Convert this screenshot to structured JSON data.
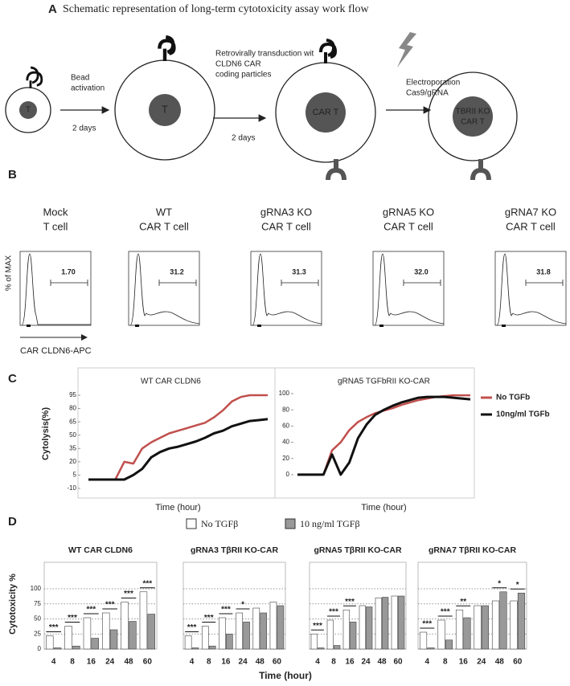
{
  "panel_a": {
    "letter": "A",
    "title": "Schematic representation of long-term cytotoxicity assay work flow",
    "cell_labels": [
      "T",
      "T",
      "CAR T"
    ],
    "ko_cell_label": [
      "TBRII KO",
      "CAR T"
    ],
    "steps": [
      {
        "lines": [
          "Bead",
          "activation"
        ],
        "duration": "2 days"
      },
      {
        "lines": [
          "Retrovirally transduction wit",
          "CLDN6 CAR",
          "coding particles"
        ],
        "duration": "2 days"
      },
      {
        "lines": [
          "Electroporation",
          "Cas9/gRNA"
        ]
      }
    ]
  },
  "panel_b": {
    "letter": "B",
    "y_label": "% of MAX",
    "x_label": "CAR CLDN6-APC",
    "samples": [
      {
        "lines": [
          "Mock",
          "T cell"
        ],
        "gate": "1.70"
      },
      {
        "lines": [
          "WT",
          "CAR T cell"
        ],
        "gate": "31.2"
      },
      {
        "lines": [
          "gRNA3 KO",
          "CAR T cell"
        ],
        "gate": "31.3"
      },
      {
        "lines": [
          "gRNA5 KO",
          "CAR T cell"
        ],
        "gate": "32.0"
      },
      {
        "lines": [
          "gRNA7 KO",
          "CAR T cell"
        ],
        "gate": "31.8"
      }
    ]
  },
  "panel_c": {
    "letter": "C"
  },
  "panel_d": {
    "letter": "D"
  },
  "chart_data": [
    {
      "type": "line",
      "title": "WT CAR CLDN6",
      "ylabel": "Cytolysis(%)",
      "xlabel": "Time (hour)",
      "ylim": [
        -10,
        100
      ],
      "yticks": [
        95,
        80,
        65,
        50,
        35,
        20,
        5,
        -10
      ],
      "series": [
        {
          "name": "No TGFb",
          "color": "#c0504d",
          "values": [
            0,
            0,
            0,
            0,
            20,
            18,
            35,
            42,
            47,
            52,
            55,
            58,
            61,
            64,
            70,
            78,
            88,
            93,
            95,
            95,
            95
          ]
        },
        {
          "name": "10ng/ml TGFb",
          "color": "#111111",
          "values": [
            0,
            0,
            0,
            0,
            0,
            5,
            12,
            25,
            31,
            35,
            37,
            40,
            43,
            47,
            52,
            55,
            60,
            63,
            66,
            67,
            68
          ]
        }
      ]
    },
    {
      "type": "line",
      "title": "gRNA5 TGFbRII KO-CAR",
      "xlabel": "Time (hour)",
      "ylim": [
        -10,
        105
      ],
      "yticks": [
        100,
        80,
        60,
        40,
        20,
        0
      ],
      "series": [
        {
          "color": "#c0504d",
          "values": [
            0,
            0,
            0,
            0,
            30,
            40,
            55,
            65,
            71,
            76,
            79,
            82,
            86,
            89,
            92,
            94,
            96,
            97,
            98,
            98,
            98
          ]
        },
        {
          "color": "#111111",
          "values": [
            0,
            0,
            0,
            0,
            25,
            0,
            15,
            45,
            62,
            74,
            80,
            85,
            89,
            92,
            95,
            96,
            96,
            96,
            95,
            94,
            93
          ]
        }
      ]
    },
    {
      "type": "bar",
      "ylabel": "Cytotoxicity %",
      "xlabel": "Time (hour)",
      "categories": [
        "4",
        "8",
        "16",
        "24",
        "48",
        "60"
      ],
      "ylim": [
        0,
        140
      ],
      "yticks": [
        0,
        25,
        50,
        75,
        100
      ],
      "series": [
        {
          "name": "No TGFβ",
          "color": "#ffffff"
        },
        {
          "name": "10 ng/ml TGFβ",
          "color": "#999999"
        }
      ],
      "panels": [
        {
          "title": "WT CAR CLDN6",
          "values": [
            [
              22,
              38,
              52,
              60,
              78,
              95
            ],
            [
              2,
              5,
              18,
              32,
              46,
              58
            ]
          ],
          "significance": [
            "***",
            "***",
            "***",
            "***",
            "***",
            "***"
          ]
        },
        {
          "title": "gRNA3 TβRII KO-CAR",
          "values": [
            [
              22,
              38,
              52,
              60,
              68,
              78
            ],
            [
              2,
              5,
              25,
              45,
              60,
              72
            ]
          ],
          "significance": [
            "***",
            "***",
            "***",
            "*",
            null,
            null
          ]
        },
        {
          "title": "gRNA5 TβRII KO-CAR",
          "values": [
            [
              25,
              48,
              65,
              72,
              85,
              88
            ],
            [
              2,
              6,
              45,
              70,
              86,
              88
            ]
          ],
          "significance": [
            "***",
            "***",
            "***",
            null,
            null,
            null
          ]
        },
        {
          "title": "gRNA7 TβRII KO-CAR",
          "values": [
            [
              28,
              48,
              65,
              72,
              80,
              80
            ],
            [
              2,
              15,
              52,
              72,
              95,
              93
            ]
          ],
          "significance": [
            "***",
            "***",
            "**",
            null,
            "*",
            "*"
          ]
        }
      ]
    }
  ]
}
